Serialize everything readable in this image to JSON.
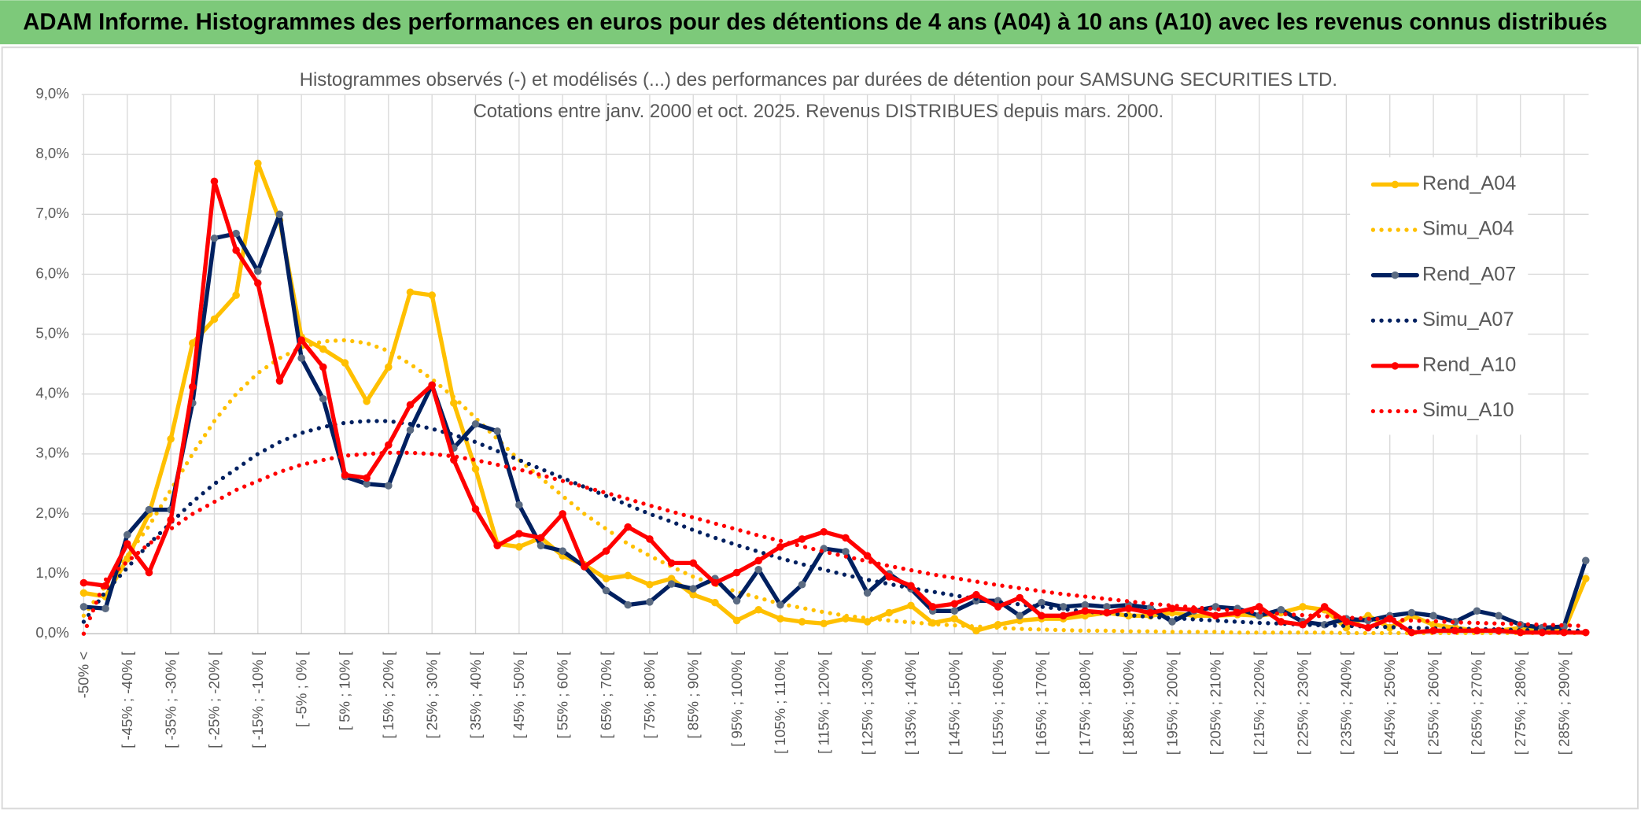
{
  "banner": "ADAM Informe. Histogrammes des performances en euros pour des détentions de 4 ans (A04) à 10 ans (A10) avec les revenus connus distribués",
  "chart_data": {
    "type": "line",
    "title": "Histogrammes observés (-) et modélisés (...) des performances par durées de détention pour SAMSUNG SECURITIES LTD.",
    "subtitle": "Cotations entre janv. 2000 et oct. 2025. Revenus DISTRIBUES depuis mars. 2000.",
    "categories": [
      "-50% <",
      null,
      "[ -45% ; -40% [",
      null,
      "[ -35% ; -30% [",
      null,
      "[ -25% ; -20% [",
      null,
      "[ -15% ; -10% [",
      null,
      "[ -5% ; 0% [",
      null,
      "[ 5% ; 10% [",
      null,
      "[ 15% ; 20% [",
      null,
      "[ 25% ; 30% [",
      null,
      "[ 35% ; 40% [",
      null,
      "[ 45% ; 50% [",
      null,
      "[ 55% ; 60% [",
      null,
      "[ 65% ; 70% [",
      null,
      "[ 75% ; 80% [",
      null,
      "[ 85% ; 90% [",
      null,
      "[ 95% ; 100% [",
      null,
      "[ 105% ; 110% [",
      null,
      "[ 115% ; 120% [",
      null,
      "[ 125% ; 130% [",
      null,
      "[ 135% ; 140% [",
      null,
      "[ 145% ; 150% [",
      null,
      "[ 155% ; 160% [",
      null,
      "[ 165% ; 170% [",
      null,
      "[ 175% ; 180% [",
      null,
      "[ 185% ; 190% [",
      null,
      "[ 195% ; 200% [",
      null,
      "[ 205% ; 210% [",
      null,
      "[ 215% ; 220% [",
      null,
      "[ 225% ; 230% [",
      null,
      "[ 235% ; 240% [",
      null,
      "[ 245% ; 250% [",
      null,
      "[ 255% ; 260% [",
      null,
      "[ 265% ; 270% [",
      null,
      "[ 275% ; 280% [",
      null,
      "[ 285% ; 290% [",
      null
    ],
    "series": [
      {
        "name": "Rend_A04",
        "color": "#ffc000",
        "style": "solid",
        "markers": true,
        "values": [
          0.68,
          0.62,
          1.25,
          2.0,
          3.25,
          4.85,
          5.25,
          5.65,
          7.85,
          6.9,
          4.95,
          4.75,
          4.52,
          3.88,
          4.45,
          5.7,
          5.65,
          3.85,
          2.75,
          1.5,
          1.45,
          1.6,
          1.3,
          1.15,
          0.92,
          0.97,
          0.82,
          0.92,
          0.65,
          0.52,
          0.22,
          0.4,
          0.25,
          0.2,
          0.17,
          0.25,
          0.2,
          0.35,
          0.47,
          0.18,
          0.25,
          0.05,
          0.15,
          0.22,
          0.25,
          0.25,
          0.3,
          0.35,
          0.3,
          0.3,
          0.35,
          0.3,
          0.3,
          0.32,
          0.3,
          0.35,
          0.45,
          0.4,
          0.1,
          0.3,
          0.1,
          0.3,
          0.15,
          0.1,
          0.05,
          0.05,
          0.1,
          0.05,
          0.05,
          0.92
        ]
      },
      {
        "name": "Simu_A04",
        "color": "#ffc000",
        "style": "dotted",
        "markers": false,
        "values": [
          0.3,
          0.8,
          1.3,
          1.8,
          2.4,
          3.0,
          3.55,
          4.0,
          4.35,
          4.6,
          4.78,
          4.88,
          4.9,
          4.85,
          4.72,
          4.5,
          4.25,
          3.95,
          3.6,
          3.25,
          2.9,
          2.6,
          2.3,
          2.0,
          1.75,
          1.5,
          1.3,
          1.12,
          0.95,
          0.82,
          0.7,
          0.6,
          0.5,
          0.43,
          0.36,
          0.3,
          0.26,
          0.22,
          0.19,
          0.16,
          0.14,
          0.12,
          0.1,
          0.08,
          0.07,
          0.06,
          0.05,
          0.05,
          0.04,
          0.04,
          0.03,
          0.03,
          0.03,
          0.02,
          0.02,
          0.02,
          0.02,
          0.02,
          0.01,
          0.01,
          0.01,
          0.01,
          0.01,
          0.01,
          0.01,
          0.01,
          0.01,
          0.01,
          0.01,
          0.01
        ]
      },
      {
        "name": "Rend_A07",
        "color": "#002060",
        "marker_color": "#5b6b82",
        "style": "solid",
        "markers": true,
        "values": [
          0.45,
          0.42,
          1.65,
          2.07,
          2.07,
          3.85,
          6.6,
          6.68,
          6.05,
          7.0,
          4.6,
          3.92,
          2.62,
          2.5,
          2.47,
          3.4,
          4.15,
          3.1,
          3.5,
          3.38,
          2.15,
          1.47,
          1.38,
          1.12,
          0.72,
          0.48,
          0.53,
          0.83,
          0.75,
          0.92,
          0.55,
          1.07,
          0.48,
          0.82,
          1.42,
          1.37,
          0.68,
          1.0,
          0.75,
          0.38,
          0.38,
          0.55,
          0.55,
          0.3,
          0.52,
          0.45,
          0.48,
          0.45,
          0.48,
          0.43,
          0.2,
          0.38,
          0.45,
          0.42,
          0.3,
          0.4,
          0.2,
          0.15,
          0.25,
          0.22,
          0.3,
          0.35,
          0.3,
          0.2,
          0.38,
          0.3,
          0.15,
          0.1,
          0.12,
          1.22
        ]
      },
      {
        "name": "Simu_A07",
        "color": "#002060",
        "style": "dotted",
        "markers": false,
        "values": [
          0.2,
          0.7,
          1.1,
          1.5,
          1.85,
          2.2,
          2.5,
          2.75,
          3.0,
          3.2,
          3.35,
          3.45,
          3.52,
          3.55,
          3.55,
          3.5,
          3.42,
          3.32,
          3.2,
          3.05,
          2.9,
          2.75,
          2.6,
          2.45,
          2.3,
          2.15,
          2.0,
          1.87,
          1.73,
          1.6,
          1.48,
          1.37,
          1.26,
          1.16,
          1.07,
          0.98,
          0.9,
          0.83,
          0.76,
          0.7,
          0.64,
          0.58,
          0.53,
          0.49,
          0.45,
          0.41,
          0.37,
          0.34,
          0.31,
          0.28,
          0.26,
          0.24,
          0.22,
          0.2,
          0.18,
          0.17,
          0.15,
          0.14,
          0.13,
          0.12,
          0.11,
          0.1,
          0.09,
          0.08,
          0.08,
          0.07,
          0.06,
          0.06,
          0.05,
          0.05
        ]
      },
      {
        "name": "Rend_A10",
        "color": "#ff0000",
        "style": "solid",
        "markers": true,
        "values": [
          0.85,
          0.8,
          1.5,
          1.02,
          1.9,
          4.12,
          7.55,
          6.4,
          5.85,
          4.22,
          4.9,
          4.45,
          2.65,
          2.6,
          3.15,
          3.82,
          4.15,
          2.9,
          2.08,
          1.47,
          1.67,
          1.6,
          2.0,
          1.12,
          1.38,
          1.78,
          1.58,
          1.18,
          1.18,
          0.85,
          1.02,
          1.22,
          1.45,
          1.58,
          1.7,
          1.6,
          1.3,
          0.95,
          0.8,
          0.45,
          0.5,
          0.65,
          0.45,
          0.6,
          0.3,
          0.3,
          0.38,
          0.35,
          0.42,
          0.35,
          0.42,
          0.4,
          0.3,
          0.35,
          0.45,
          0.2,
          0.15,
          0.45,
          0.2,
          0.1,
          0.25,
          0.02,
          0.05,
          0.05,
          0.05,
          0.05,
          0.02,
          0.02,
          0.02,
          0.02
        ]
      },
      {
        "name": "Simu_A10",
        "color": "#ff0000",
        "style": "dotted",
        "markers": false,
        "values": [
          0.0,
          0.9,
          1.2,
          1.5,
          1.75,
          2.0,
          2.2,
          2.4,
          2.55,
          2.7,
          2.82,
          2.9,
          2.97,
          3.0,
          3.02,
          3.02,
          3.0,
          2.96,
          2.9,
          2.82,
          2.74,
          2.65,
          2.55,
          2.45,
          2.35,
          2.25,
          2.14,
          2.04,
          1.94,
          1.84,
          1.74,
          1.64,
          1.55,
          1.46,
          1.37,
          1.29,
          1.21,
          1.13,
          1.06,
          0.99,
          0.93,
          0.87,
          0.81,
          0.76,
          0.71,
          0.66,
          0.62,
          0.58,
          0.54,
          0.5,
          0.47,
          0.44,
          0.41,
          0.38,
          0.36,
          0.33,
          0.31,
          0.29,
          0.27,
          0.25,
          0.24,
          0.22,
          0.21,
          0.19,
          0.18,
          0.17,
          0.16,
          0.15,
          0.14,
          0.13
        ]
      }
    ],
    "ylim": [
      0,
      9
    ],
    "yticks": [
      {
        "value": 0,
        "label": "0,0%"
      },
      {
        "value": 1,
        "label": "1,0%"
      },
      {
        "value": 2,
        "label": "2,0%"
      },
      {
        "value": 3,
        "label": "3,0%"
      },
      {
        "value": 4,
        "label": "4,0%"
      },
      {
        "value": 5,
        "label": "5,0%"
      },
      {
        "value": 6,
        "label": "6,0%"
      },
      {
        "value": 7,
        "label": "7,0%"
      },
      {
        "value": 8,
        "label": "8,0%"
      },
      {
        "value": 9,
        "label": "9,0%"
      }
    ],
    "grid": true,
    "legend": "right"
  }
}
